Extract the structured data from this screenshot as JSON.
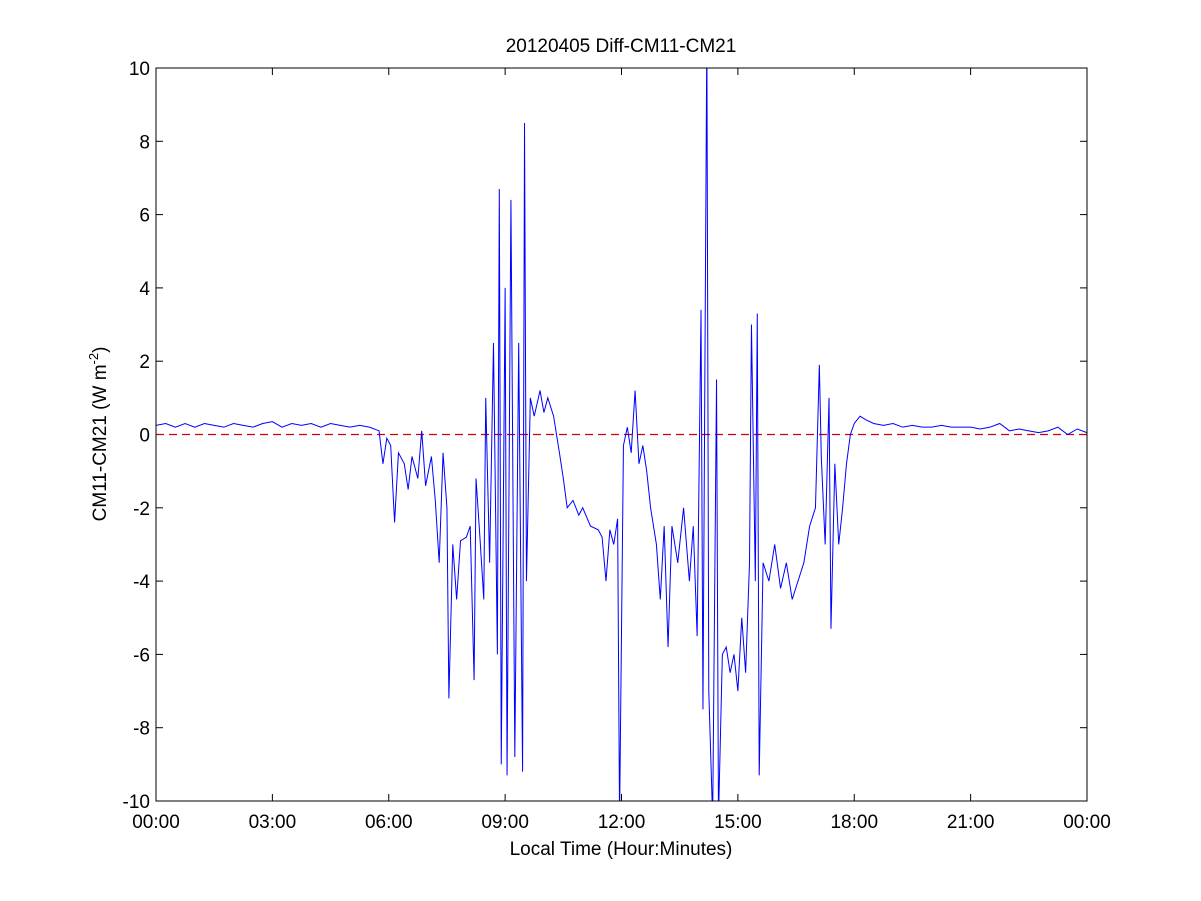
{
  "chart_data": {
    "type": "line",
    "title": "20120405 Diff-CM11-CM21",
    "xlabel": "Local Time (Hour:Minutes)",
    "ylabel": {
      "text": "CM11-CM21 (W m",
      "sup": "-2",
      "end": ")"
    },
    "xlim": [
      0,
      24
    ],
    "ylim": [
      -10,
      10
    ],
    "xticks": [
      {
        "value": 0,
        "label": "00:00"
      },
      {
        "value": 3,
        "label": "03:00"
      },
      {
        "value": 6,
        "label": "06:00"
      },
      {
        "value": 9,
        "label": "09:00"
      },
      {
        "value": 12,
        "label": "12:00"
      },
      {
        "value": 15,
        "label": "15:00"
      },
      {
        "value": 18,
        "label": "18:00"
      },
      {
        "value": 21,
        "label": "21:00"
      },
      {
        "value": 24,
        "label": "00:00"
      }
    ],
    "yticks": [
      -10,
      -8,
      -6,
      -4,
      -2,
      0,
      2,
      4,
      6,
      8,
      10
    ],
    "grid": false,
    "reference_line": {
      "value": 0,
      "color": "#d00000"
    },
    "series": [
      {
        "color": "#0000ff",
        "x": [
          0,
          0.25,
          0.5,
          0.75,
          1,
          1.25,
          1.5,
          1.75,
          2,
          2.25,
          2.5,
          2.75,
          3,
          3.25,
          3.5,
          3.75,
          4,
          4.25,
          4.5,
          4.75,
          5,
          5.25,
          5.5,
          5.75,
          5.85,
          5.95,
          6.05,
          6.15,
          6.25,
          6.4,
          6.5,
          6.6,
          6.75,
          6.85,
          6.95,
          7.1,
          7.2,
          7.3,
          7.4,
          7.5,
          7.55,
          7.65,
          7.75,
          7.85,
          8.0,
          8.1,
          8.2,
          8.25,
          8.35,
          8.45,
          8.5,
          8.6,
          8.7,
          8.8,
          8.85,
          8.9,
          9.0,
          9.05,
          9.15,
          9.25,
          9.35,
          9.45,
          9.5,
          9.55,
          9.65,
          9.75,
          9.9,
          10.0,
          10.1,
          10.25,
          10.4,
          10.5,
          10.6,
          10.75,
          10.9,
          11.0,
          11.2,
          11.4,
          11.5,
          11.6,
          11.7,
          11.8,
          11.9,
          11.95,
          12.05,
          12.15,
          12.25,
          12.35,
          12.45,
          12.55,
          12.65,
          12.75,
          12.9,
          13.0,
          13.1,
          13.2,
          13.3,
          13.45,
          13.6,
          13.75,
          13.85,
          13.95,
          14.05,
          14.1,
          14.2,
          14.25,
          14.35,
          14.45,
          14.5,
          14.6,
          14.7,
          14.8,
          14.9,
          15.0,
          15.1,
          15.2,
          15.3,
          15.35,
          15.45,
          15.5,
          15.55,
          15.65,
          15.8,
          15.95,
          16.1,
          16.25,
          16.4,
          16.55,
          16.7,
          16.85,
          17.0,
          17.1,
          17.15,
          17.25,
          17.35,
          17.4,
          17.5,
          17.6,
          17.7,
          17.8,
          17.9,
          18.0,
          18.15,
          18.3,
          18.5,
          18.75,
          19,
          19.25,
          19.5,
          19.75,
          20,
          20.25,
          20.5,
          20.75,
          21,
          21.25,
          21.5,
          21.75,
          22,
          22.25,
          22.5,
          22.75,
          23,
          23.25,
          23.5,
          23.75,
          24
        ],
        "values": [
          0.25,
          0.3,
          0.2,
          0.3,
          0.2,
          0.3,
          0.25,
          0.2,
          0.3,
          0.25,
          0.2,
          0.3,
          0.35,
          0.2,
          0.3,
          0.25,
          0.3,
          0.2,
          0.3,
          0.25,
          0.2,
          0.25,
          0.2,
          0.1,
          -0.8,
          -0.1,
          -0.3,
          -2.4,
          -0.5,
          -0.8,
          -1.5,
          -0.6,
          -1.2,
          0.1,
          -1.4,
          -0.6,
          -1.8,
          -3.5,
          -0.5,
          -2.0,
          -7.2,
          -3.0,
          -4.5,
          -2.9,
          -2.8,
          -2.5,
          -6.7,
          -1.2,
          -2.8,
          -4.5,
          1.0,
          -3.5,
          2.5,
          -6.0,
          6.7,
          -9.0,
          4.0,
          -9.3,
          6.4,
          -8.8,
          2.5,
          -9.2,
          8.5,
          -4.0,
          1.0,
          0.5,
          1.2,
          0.6,
          1.0,
          0.5,
          -0.5,
          -1.2,
          -2.0,
          -1.8,
          -2.2,
          -2.0,
          -2.5,
          -2.6,
          -2.8,
          -4.0,
          -2.6,
          -3.0,
          -2.3,
          -10.5,
          -0.3,
          0.2,
          -0.5,
          1.2,
          -0.8,
          -0.3,
          -1.0,
          -2.0,
          -3.0,
          -4.5,
          -2.5,
          -5.8,
          -2.5,
          -3.5,
          -2.0,
          -4.0,
          -2.5,
          -5.5,
          3.4,
          -7.5,
          11,
          -7.0,
          -10.5,
          1.5,
          -10.5,
          -6.0,
          -5.8,
          -6.5,
          -6.0,
          -7.0,
          -5.0,
          -6.5,
          -3.5,
          3.0,
          -4.0,
          3.3,
          -9.3,
          -3.5,
          -4.0,
          -3.0,
          -4.2,
          -3.5,
          -4.5,
          -4.0,
          -3.5,
          -2.5,
          -2.0,
          1.9,
          -0.6,
          -3.0,
          1.0,
          -5.3,
          -0.8,
          -3.0,
          -2.0,
          -0.8,
          0.0,
          0.3,
          0.5,
          0.4,
          0.3,
          0.25,
          0.3,
          0.2,
          0.25,
          0.2,
          0.2,
          0.25,
          0.2,
          0.2,
          0.2,
          0.15,
          0.2,
          0.3,
          0.1,
          0.15,
          0.1,
          0.05,
          0.1,
          0.2,
          0.0,
          0.15,
          0.05
        ]
      }
    ]
  }
}
